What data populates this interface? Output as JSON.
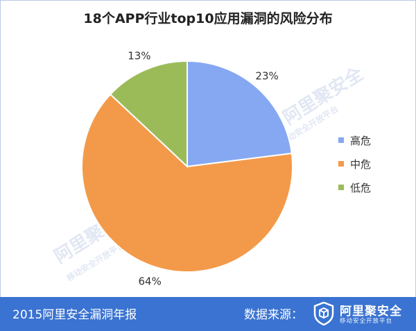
{
  "chart_data": {
    "type": "pie",
    "title": "18个APP行业top10应用漏洞的风险分布",
    "categories": [
      "高危",
      "中危",
      "低危"
    ],
    "values": [
      23,
      64,
      13
    ],
    "value_labels": [
      "23%",
      "64%",
      "13%"
    ],
    "colors": [
      "#86a8f2",
      "#f39a4a",
      "#9bbb59"
    ],
    "legend_placement": "right"
  },
  "footer": {
    "report": "2015阿里安全漏洞年报",
    "source_label": "数据来源：",
    "logo_name": "阿里聚安全",
    "logo_sub": "移动安全开放平台"
  },
  "colors": {
    "footer_bg": "#3a73d1",
    "watermark": "#c9d5ea"
  }
}
